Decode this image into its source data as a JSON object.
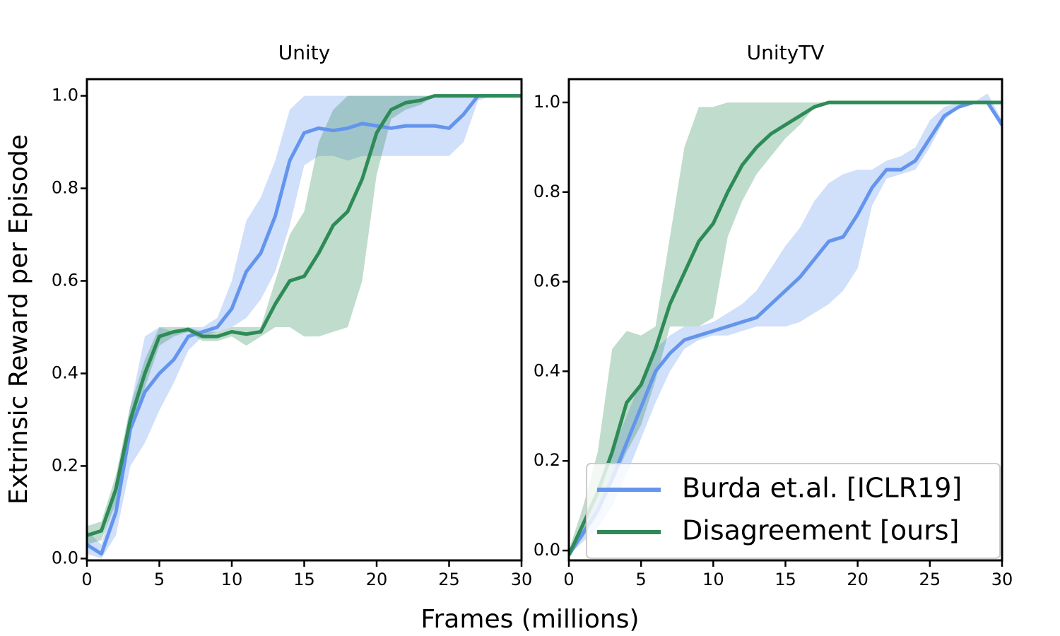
{
  "xlabel": "Frames (millions)",
  "ylabel": "Extrinsic Reward per Episode",
  "chart_data": [
    {
      "type": "line",
      "title": "Unity",
      "x": [
        0,
        1,
        2,
        3,
        4,
        5,
        6,
        7,
        8,
        9,
        10,
        11,
        12,
        13,
        14,
        15,
        16,
        17,
        18,
        19,
        20,
        21,
        22,
        23,
        24,
        25,
        26,
        27,
        28,
        29,
        30
      ],
      "xlim": [
        0,
        30
      ],
      "xticks": [
        0,
        5,
        10,
        15,
        20,
        25,
        30
      ],
      "ylim": [
        -0.004,
        1.036
      ],
      "yticks": [
        {
          "value": 0,
          "label": "0.0"
        },
        0.2,
        0.4,
        0.6,
        0.8,
        {
          "value": 1,
          "label": "1.0"
        }
      ],
      "series": [
        {
          "color": "#6495ed",
          "values": [
            0.03,
            0.01,
            0.1,
            0.28,
            0.36,
            0.4,
            0.43,
            0.48,
            0.49,
            0.5,
            0.54,
            0.62,
            0.66,
            0.74,
            0.86,
            0.92,
            0.93,
            0.925,
            0.93,
            0.94,
            0.935,
            0.93,
            0.935,
            0.935,
            0.935,
            0.93,
            0.96,
            1.0,
            1.0,
            1.0,
            1.0
          ],
          "lower": [
            0.01,
            0.0,
            0.05,
            0.2,
            0.25,
            0.32,
            0.38,
            0.45,
            0.48,
            0.49,
            0.5,
            0.52,
            0.56,
            0.62,
            0.72,
            0.85,
            0.87,
            0.87,
            0.86,
            0.87,
            0.87,
            0.87,
            0.87,
            0.87,
            0.87,
            0.87,
            0.9,
            0.99,
            1.0,
            1.0,
            1.0
          ],
          "upper": [
            0.06,
            0.03,
            0.15,
            0.33,
            0.48,
            0.5,
            0.49,
            0.5,
            0.5,
            0.52,
            0.6,
            0.73,
            0.78,
            0.86,
            0.97,
            1.0,
            1.0,
            1.0,
            1.0,
            1.0,
            1.0,
            1.0,
            1.0,
            1.0,
            1.0,
            1.0,
            1.0,
            1.0,
            1.0,
            1.0,
            1.0
          ]
        },
        {
          "color": "#2e8b57",
          "values": [
            0.05,
            0.06,
            0.15,
            0.3,
            0.4,
            0.48,
            0.49,
            0.495,
            0.48,
            0.48,
            0.49,
            0.485,
            0.49,
            0.55,
            0.6,
            0.61,
            0.66,
            0.72,
            0.75,
            0.82,
            0.92,
            0.97,
            0.985,
            0.99,
            1.0,
            1.0,
            1.0,
            1.0,
            1.0,
            1.0,
            1.0
          ],
          "lower": [
            0.03,
            0.04,
            0.12,
            0.27,
            0.37,
            0.46,
            0.48,
            0.49,
            0.47,
            0.47,
            0.48,
            0.46,
            0.48,
            0.5,
            0.5,
            0.48,
            0.48,
            0.49,
            0.5,
            0.6,
            0.83,
            0.95,
            0.97,
            0.98,
            1.0,
            1.0,
            1.0,
            1.0,
            1.0,
            1.0,
            1.0
          ],
          "upper": [
            0.07,
            0.08,
            0.18,
            0.33,
            0.43,
            0.5,
            0.5,
            0.5,
            0.49,
            0.49,
            0.5,
            0.5,
            0.5,
            0.6,
            0.7,
            0.75,
            0.9,
            0.97,
            1.0,
            1.0,
            1.0,
            1.0,
            1.0,
            1.0,
            1.0,
            1.0,
            1.0,
            1.0,
            1.0,
            1.0,
            1.0
          ]
        }
      ]
    },
    {
      "type": "line",
      "title": "UnityTV",
      "x": [
        0,
        1,
        2,
        3,
        4,
        5,
        6,
        7,
        8,
        9,
        10,
        11,
        12,
        13,
        14,
        15,
        16,
        17,
        18,
        19,
        20,
        21,
        22,
        23,
        24,
        25,
        26,
        27,
        28,
        29,
        30
      ],
      "xlim": [
        0,
        30
      ],
      "xticks": [
        0,
        5,
        10,
        15,
        20,
        25,
        30
      ],
      "ylim": [
        -0.022,
        1.052
      ],
      "yticks": [
        {
          "value": 0,
          "label": "0.0"
        },
        0.2,
        0.4,
        0.6,
        0.8,
        {
          "value": 1,
          "label": "1.0"
        }
      ],
      "legend": "lower right",
      "series": [
        {
          "name": "Burda et.al. [ICLR19]",
          "color": "#6495ed",
          "values": [
            -0.01,
            0.04,
            0.09,
            0.16,
            0.24,
            0.32,
            0.4,
            0.44,
            0.47,
            0.48,
            0.49,
            0.5,
            0.51,
            0.52,
            0.55,
            0.58,
            0.61,
            0.65,
            0.69,
            0.7,
            0.75,
            0.81,
            0.85,
            0.85,
            0.87,
            0.92,
            0.97,
            0.99,
            1.0,
            1.0,
            0.95
          ],
          "lower": [
            -0.01,
            0.02,
            0.05,
            0.1,
            0.17,
            0.25,
            0.33,
            0.4,
            0.45,
            0.47,
            0.48,
            0.48,
            0.49,
            0.5,
            0.5,
            0.5,
            0.51,
            0.53,
            0.55,
            0.58,
            0.63,
            0.77,
            0.83,
            0.84,
            0.85,
            0.9,
            0.96,
            0.99,
            1.0,
            1.0,
            0.94
          ],
          "upper": [
            0.0,
            0.06,
            0.12,
            0.22,
            0.3,
            0.38,
            0.45,
            0.48,
            0.5,
            0.5,
            0.51,
            0.53,
            0.55,
            0.58,
            0.63,
            0.68,
            0.72,
            0.78,
            0.82,
            0.84,
            0.85,
            0.85,
            0.87,
            0.88,
            0.9,
            0.96,
            0.99,
            1.0,
            1.0,
            1.02,
            0.96
          ]
        },
        {
          "name": "Disagreement [ours]",
          "color": "#2e8b57",
          "values": [
            -0.01,
            0.06,
            0.13,
            0.22,
            0.33,
            0.37,
            0.45,
            0.55,
            0.62,
            0.69,
            0.73,
            0.8,
            0.86,
            0.9,
            0.93,
            0.95,
            0.97,
            0.99,
            1.0,
            1.0,
            1.0,
            1.0,
            1.0,
            1.0,
            1.0,
            1.0,
            1.0,
            1.0,
            1.0,
            1.0,
            1.0
          ],
          "lower": [
            -0.01,
            0.03,
            0.08,
            0.15,
            0.22,
            0.28,
            0.38,
            0.5,
            0.5,
            0.5,
            0.52,
            0.7,
            0.78,
            0.84,
            0.88,
            0.92,
            0.95,
            0.99,
            1.0,
            1.0,
            1.0,
            1.0,
            1.0,
            1.0,
            1.0,
            1.0,
            1.0,
            1.0,
            1.0,
            1.0,
            1.0
          ],
          "upper": [
            0.0,
            0.1,
            0.22,
            0.45,
            0.49,
            0.48,
            0.5,
            0.7,
            0.9,
            0.99,
            0.99,
            1.0,
            1.0,
            1.0,
            1.0,
            1.0,
            1.0,
            1.0,
            1.0,
            1.0,
            1.0,
            1.0,
            1.0,
            1.0,
            1.0,
            1.0,
            1.0,
            1.0,
            1.0,
            1.0,
            1.0
          ]
        }
      ]
    }
  ]
}
